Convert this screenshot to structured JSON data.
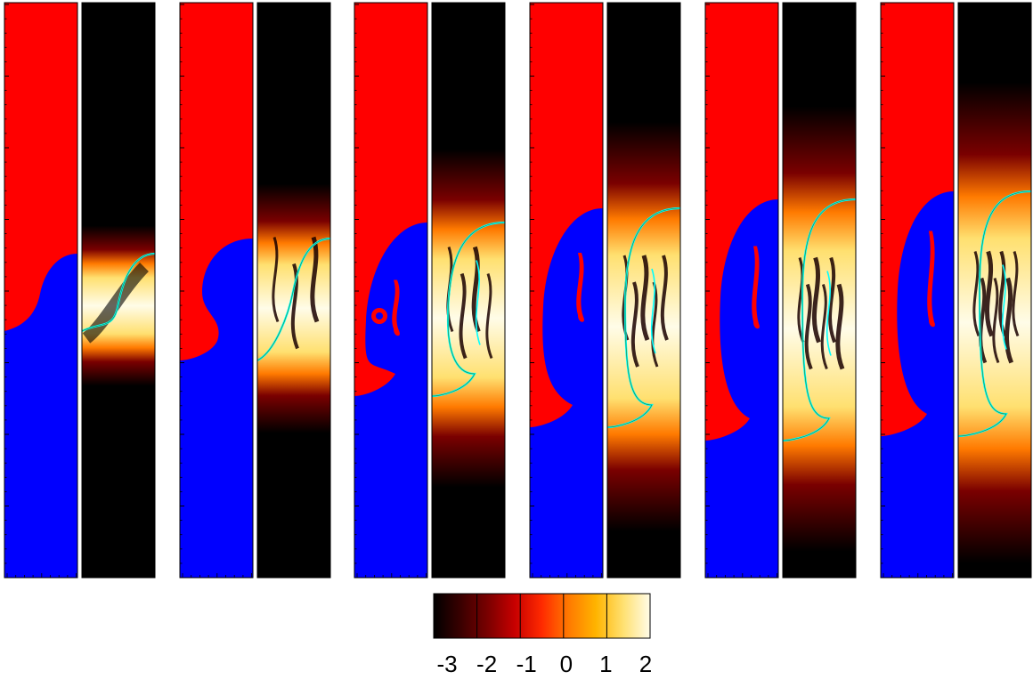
{
  "figure": {
    "panel_count": 6,
    "panel_fields": [
      "phase",
      "log-magnitude"
    ],
    "phase_colors": {
      "upper_fluid": "#ff0000",
      "lower_fluid": "#0000ff"
    },
    "interface_color": "#00ffff",
    "heat_colormap": [
      "#000000",
      "#3a0000",
      "#7a0000",
      "#c80000",
      "#ff2a00",
      "#ff7a00",
      "#ffb400",
      "#ffe070",
      "#fffce8"
    ]
  },
  "colorbar": {
    "ticks": [
      "-3",
      "-2",
      "-1",
      "0",
      "1",
      "2"
    ],
    "range": [
      -3,
      2
    ]
  }
}
